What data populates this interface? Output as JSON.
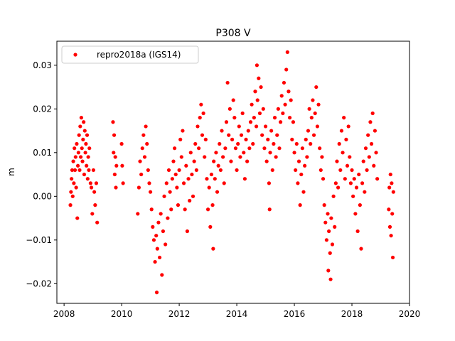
{
  "chart_data": {
    "type": "scatter",
    "title": "P308 V",
    "xlabel": "",
    "ylabel": "m",
    "xlim": [
      2007.75,
      2020.0
    ],
    "ylim": [
      -0.0245,
      0.0355
    ],
    "xticks": [
      2008,
      2010,
      2012,
      2014,
      2016,
      2018,
      2020
    ],
    "yticks": [
      -0.02,
      -0.01,
      0.0,
      0.01,
      0.02,
      0.03
    ],
    "xtick_labels": [
      "2008",
      "2010",
      "2012",
      "2014",
      "2016",
      "2018",
      "2020"
    ],
    "ytick_labels": [
      "−0.02",
      "−0.01",
      "0.00",
      "0.01",
      "0.02",
      "0.03"
    ],
    "grid": false,
    "legend_position": "upper-left",
    "series": [
      {
        "name": "repro2018a (IGS14)",
        "color": "#ff0000",
        "marker": "dot",
        "points": [
          [
            2008.22,
            -0.002
          ],
          [
            2008.24,
            0.001
          ],
          [
            2008.26,
            0.004
          ],
          [
            2008.28,
            0.006
          ],
          [
            2008.3,
            0.0
          ],
          [
            2008.32,
            0.008
          ],
          [
            2008.34,
            0.003
          ],
          [
            2008.36,
            0.011
          ],
          [
            2008.38,
            0.006
          ],
          [
            2008.4,
            0.009
          ],
          [
            2008.42,
            0.002
          ],
          [
            2008.44,
            0.012
          ],
          [
            2008.46,
            -0.005
          ],
          [
            2008.48,
            0.007
          ],
          [
            2008.5,
            0.01
          ],
          [
            2008.52,
            0.014
          ],
          [
            2008.54,
            0.006
          ],
          [
            2008.56,
            0.016
          ],
          [
            2008.58,
            0.009
          ],
          [
            2008.6,
            0.018
          ],
          [
            2008.62,
            0.011
          ],
          [
            2008.64,
            0.008
          ],
          [
            2008.66,
            0.013
          ],
          [
            2008.68,
            0.017
          ],
          [
            2008.7,
            0.005
          ],
          [
            2008.72,
            0.015
          ],
          [
            2008.74,
            0.01
          ],
          [
            2008.76,
            0.012
          ],
          [
            2008.78,
            0.007
          ],
          [
            2008.8,
            0.014
          ],
          [
            2008.82,
            0.004
          ],
          [
            2008.84,
            0.009
          ],
          [
            2008.86,
            0.006
          ],
          [
            2008.88,
            0.011
          ],
          [
            2008.92,
            0.003
          ],
          [
            2008.95,
            0.002
          ],
          [
            2008.98,
            -0.004
          ],
          [
            2009.02,
            0.006
          ],
          [
            2009.05,
            0.001
          ],
          [
            2009.08,
            -0.002
          ],
          [
            2009.12,
            0.003
          ],
          [
            2009.15,
            -0.006
          ],
          [
            2009.7,
            0.017
          ],
          [
            2009.72,
            0.01
          ],
          [
            2009.74,
            0.014
          ],
          [
            2009.76,
            0.005
          ],
          [
            2009.78,
            0.009
          ],
          [
            2009.8,
            0.002
          ],
          [
            2009.82,
            0.007
          ],
          [
            2010.0,
            0.012
          ],
          [
            2010.02,
            0.007
          ],
          [
            2010.05,
            0.003
          ],
          [
            2010.56,
            -0.004
          ],
          [
            2010.6,
            0.002
          ],
          [
            2010.64,
            0.008
          ],
          [
            2010.68,
            0.005
          ],
          [
            2010.72,
            0.011
          ],
          [
            2010.76,
            0.014
          ],
          [
            2010.8,
            0.009
          ],
          [
            2010.84,
            0.016
          ],
          [
            2010.88,
            0.012
          ],
          [
            2010.92,
            0.006
          ],
          [
            2010.96,
            0.003
          ],
          [
            2011.0,
            0.001
          ],
          [
            2011.04,
            -0.003
          ],
          [
            2011.08,
            -0.007
          ],
          [
            2011.12,
            -0.01
          ],
          [
            2011.16,
            -0.015
          ],
          [
            2011.2,
            -0.009
          ],
          [
            2011.22,
            -0.022
          ],
          [
            2011.24,
            -0.012
          ],
          [
            2011.28,
            -0.006
          ],
          [
            2011.32,
            -0.014
          ],
          [
            2011.36,
            -0.004
          ],
          [
            2011.4,
            -0.018
          ],
          [
            2011.44,
            -0.008
          ],
          [
            2011.48,
            0.0
          ],
          [
            2011.52,
            -0.011
          ],
          [
            2011.56,
            0.003
          ],
          [
            2011.6,
            -0.005
          ],
          [
            2011.64,
            0.006
          ],
          [
            2011.68,
            0.001
          ],
          [
            2011.72,
            -0.003
          ],
          [
            2011.76,
            0.004
          ],
          [
            2011.8,
            0.008
          ],
          [
            2011.84,
            0.011
          ],
          [
            2011.88,
            0.005
          ],
          [
            2011.92,
            0.002
          ],
          [
            2011.96,
            -0.002
          ],
          [
            2012.0,
            0.006
          ],
          [
            2012.04,
            0.013
          ],
          [
            2012.08,
            0.009
          ],
          [
            2012.12,
            0.015
          ],
          [
            2012.16,
            0.003
          ],
          [
            2012.2,
            -0.003
          ],
          [
            2012.24,
            0.007
          ],
          [
            2012.28,
            -0.008
          ],
          [
            2012.32,
            0.004
          ],
          [
            2012.36,
            -0.001
          ],
          [
            2012.4,
            0.01
          ],
          [
            2012.44,
            0.005
          ],
          [
            2012.48,
            0.0
          ],
          [
            2012.52,
            0.008
          ],
          [
            2012.56,
            0.012
          ],
          [
            2012.6,
            0.006
          ],
          [
            2012.64,
            0.016
          ],
          [
            2012.68,
            0.011
          ],
          [
            2012.72,
            0.018
          ],
          [
            2012.76,
            0.021
          ],
          [
            2012.8,
            0.014
          ],
          [
            2012.84,
            0.019
          ],
          [
            2012.88,
            0.009
          ],
          [
            2012.92,
            0.013
          ],
          [
            2012.96,
            0.004
          ],
          [
            2013.0,
            -0.003
          ],
          [
            2013.04,
            0.002
          ],
          [
            2013.08,
            -0.007
          ],
          [
            2013.12,
            0.005
          ],
          [
            2013.16,
            -0.002
          ],
          [
            2013.18,
            -0.012
          ],
          [
            2013.2,
            0.008
          ],
          [
            2013.24,
            0.004
          ],
          [
            2013.28,
            0.01
          ],
          [
            2013.32,
            0.001
          ],
          [
            2013.36,
            0.007
          ],
          [
            2013.4,
            0.012
          ],
          [
            2013.44,
            0.006
          ],
          [
            2013.48,
            0.015
          ],
          [
            2013.52,
            0.009
          ],
          [
            2013.56,
            0.003
          ],
          [
            2013.6,
            0.011
          ],
          [
            2013.64,
            0.017
          ],
          [
            2013.68,
            0.026
          ],
          [
            2013.72,
            0.014
          ],
          [
            2013.76,
            0.02
          ],
          [
            2013.8,
            0.008
          ],
          [
            2013.84,
            0.013
          ],
          [
            2013.88,
            0.022
          ],
          [
            2013.92,
            0.018
          ],
          [
            2013.96,
            0.011
          ],
          [
            2014.0,
            0.006
          ],
          [
            2014.04,
            0.012
          ],
          [
            2014.08,
            0.016
          ],
          [
            2014.12,
            0.009
          ],
          [
            2014.16,
            0.014
          ],
          [
            2014.2,
            0.019
          ],
          [
            2014.24,
            0.01
          ],
          [
            2014.28,
            0.004
          ],
          [
            2014.32,
            0.013
          ],
          [
            2014.36,
            0.008
          ],
          [
            2014.4,
            0.015
          ],
          [
            2014.44,
            0.011
          ],
          [
            2014.48,
            0.017
          ],
          [
            2014.52,
            0.021
          ],
          [
            2014.56,
            0.012
          ],
          [
            2014.6,
            0.018
          ],
          [
            2014.64,
            0.024
          ],
          [
            2014.68,
            0.016
          ],
          [
            2014.7,
            0.03
          ],
          [
            2014.72,
            0.022
          ],
          [
            2014.76,
            0.027
          ],
          [
            2014.8,
            0.019
          ],
          [
            2014.84,
            0.025
          ],
          [
            2014.88,
            0.014
          ],
          [
            2014.92,
            0.02
          ],
          [
            2014.96,
            0.011
          ],
          [
            2015.0,
            0.016
          ],
          [
            2015.04,
            0.008
          ],
          [
            2015.08,
            0.013
          ],
          [
            2015.12,
            0.003
          ],
          [
            2015.14,
            -0.003
          ],
          [
            2015.16,
            0.01
          ],
          [
            2015.2,
            0.015
          ],
          [
            2015.24,
            0.006
          ],
          [
            2015.28,
            0.012
          ],
          [
            2015.32,
            0.018
          ],
          [
            2015.36,
            0.009
          ],
          [
            2015.4,
            0.014
          ],
          [
            2015.44,
            0.02
          ],
          [
            2015.48,
            0.011
          ],
          [
            2015.52,
            0.017
          ],
          [
            2015.56,
            0.023
          ],
          [
            2015.6,
            0.019
          ],
          [
            2015.64,
            0.026
          ],
          [
            2015.68,
            0.021
          ],
          [
            2015.72,
            0.029
          ],
          [
            2015.76,
            0.033
          ],
          [
            2015.8,
            0.024
          ],
          [
            2015.84,
            0.018
          ],
          [
            2015.88,
            0.022
          ],
          [
            2015.92,
            0.013
          ],
          [
            2015.96,
            0.017
          ],
          [
            2016.0,
            0.01
          ],
          [
            2016.04,
            0.006
          ],
          [
            2016.08,
            0.012
          ],
          [
            2016.12,
            0.003
          ],
          [
            2016.16,
            0.008
          ],
          [
            2016.2,
            -0.002
          ],
          [
            2016.24,
            0.005
          ],
          [
            2016.28,
            0.011
          ],
          [
            2016.32,
            0.001
          ],
          [
            2016.36,
            0.007
          ],
          [
            2016.4,
            0.013
          ],
          [
            2016.44,
            0.009
          ],
          [
            2016.48,
            0.015
          ],
          [
            2016.52,
            0.02
          ],
          [
            2016.56,
            0.012
          ],
          [
            2016.6,
            0.018
          ],
          [
            2016.64,
            0.022
          ],
          [
            2016.68,
            0.014
          ],
          [
            2016.72,
            0.019
          ],
          [
            2016.76,
            0.025
          ],
          [
            2016.8,
            0.016
          ],
          [
            2016.84,
            0.021
          ],
          [
            2016.88,
            0.011
          ],
          [
            2016.92,
            0.006
          ],
          [
            2016.96,
            0.009
          ],
          [
            2017.0,
            0.004
          ],
          [
            2017.04,
            -0.002
          ],
          [
            2017.08,
            -0.006
          ],
          [
            2017.12,
            -0.01
          ],
          [
            2017.16,
            -0.004
          ],
          [
            2017.18,
            -0.017
          ],
          [
            2017.2,
            -0.008
          ],
          [
            2017.24,
            -0.013
          ],
          [
            2017.26,
            -0.019
          ],
          [
            2017.28,
            -0.005
          ],
          [
            2017.32,
            -0.011
          ],
          [
            2017.36,
            0.0
          ],
          [
            2017.4,
            -0.007
          ],
          [
            2017.44,
            0.003
          ],
          [
            2017.48,
            0.008
          ],
          [
            2017.52,
            0.002
          ],
          [
            2017.56,
            0.012
          ],
          [
            2017.6,
            0.006
          ],
          [
            2017.64,
            0.015
          ],
          [
            2017.68,
            0.01
          ],
          [
            2017.72,
            0.018
          ],
          [
            2017.76,
            0.004
          ],
          [
            2017.8,
            0.013
          ],
          [
            2017.84,
            0.007
          ],
          [
            2017.88,
            0.016
          ],
          [
            2017.92,
            0.009
          ],
          [
            2017.96,
            0.003
          ],
          [
            2018.0,
            0.006
          ],
          [
            2018.04,
            0.0
          ],
          [
            2018.08,
            0.004
          ],
          [
            2018.12,
            -0.004
          ],
          [
            2018.16,
            0.002
          ],
          [
            2018.2,
            -0.008
          ],
          [
            2018.24,
            0.005
          ],
          [
            2018.28,
            -0.002
          ],
          [
            2018.32,
            -0.012
          ],
          [
            2018.36,
            0.003
          ],
          [
            2018.4,
            0.008
          ],
          [
            2018.44,
            0.001
          ],
          [
            2018.48,
            0.011
          ],
          [
            2018.52,
            0.006
          ],
          [
            2018.56,
            0.014
          ],
          [
            2018.6,
            0.009
          ],
          [
            2018.64,
            0.017
          ],
          [
            2018.68,
            0.012
          ],
          [
            2018.72,
            0.019
          ],
          [
            2018.76,
            0.007
          ],
          [
            2018.8,
            0.015
          ],
          [
            2018.84,
            0.01
          ],
          [
            2018.88,
            0.004
          ],
          [
            2019.28,
            -0.003
          ],
          [
            2019.3,
            0.002
          ],
          [
            2019.32,
            -0.007
          ],
          [
            2019.34,
            0.005
          ],
          [
            2019.36,
            -0.009
          ],
          [
            2019.38,
            0.003
          ],
          [
            2019.4,
            -0.004
          ],
          [
            2019.42,
            -0.014
          ],
          [
            2019.44,
            0.001
          ]
        ]
      }
    ]
  }
}
